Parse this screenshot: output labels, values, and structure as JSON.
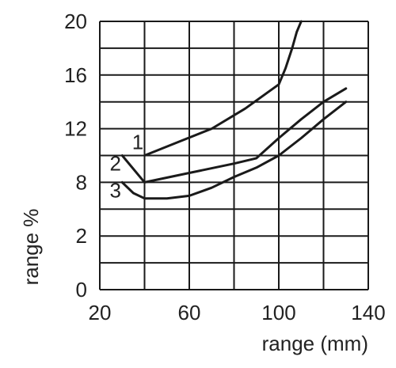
{
  "chart_data": {
    "type": "line",
    "title": "",
    "xlabel": "range (mm)",
    "ylabel": "range %",
    "xlim": [
      20,
      140
    ],
    "x_ticks": [
      20,
      60,
      100,
      140
    ],
    "x_grid": [
      20,
      40,
      60,
      80,
      100,
      120,
      140
    ],
    "y_tick_labels": [
      "0",
      "2",
      "8",
      "12",
      "16",
      "20"
    ],
    "y_ticks": [
      0,
      2,
      4,
      6,
      8,
      10,
      12,
      14,
      16,
      18,
      20
    ],
    "y_label_at": [
      0,
      4,
      8,
      12,
      16,
      20
    ],
    "y_scale_note": "bottom region of axis is nonlinear as printed; positions follow grid rows",
    "grid": true,
    "series": [
      {
        "name": "1",
        "label_at": [
          37,
          11
        ],
        "points": [
          [
            40,
            10
          ],
          [
            55,
            11
          ],
          [
            70,
            12
          ],
          [
            85,
            13.5
          ],
          [
            95,
            14.7
          ],
          [
            100,
            15.3
          ],
          [
            103,
            16.5
          ],
          [
            106,
            18
          ],
          [
            108,
            19.2
          ],
          [
            110,
            20
          ]
        ]
      },
      {
        "name": "2",
        "label_at": [
          27,
          9.4
        ],
        "points": [
          [
            30,
            10
          ],
          [
            40,
            8
          ],
          [
            60,
            8.7
          ],
          [
            80,
            9.4
          ],
          [
            90,
            9.8
          ],
          [
            100,
            11.3
          ],
          [
            110,
            12.7
          ],
          [
            120,
            14
          ],
          [
            130,
            15
          ]
        ]
      },
      {
        "name": "3",
        "label_at": [
          27,
          7.4
        ],
        "points": [
          [
            30,
            8
          ],
          [
            35,
            7.2
          ],
          [
            40,
            6.8
          ],
          [
            50,
            6.8
          ],
          [
            60,
            7
          ],
          [
            70,
            7.6
          ],
          [
            80,
            8.4
          ],
          [
            90,
            9.1
          ],
          [
            100,
            10
          ],
          [
            110,
            11.3
          ],
          [
            120,
            12.7
          ],
          [
            130,
            14
          ]
        ]
      }
    ]
  }
}
